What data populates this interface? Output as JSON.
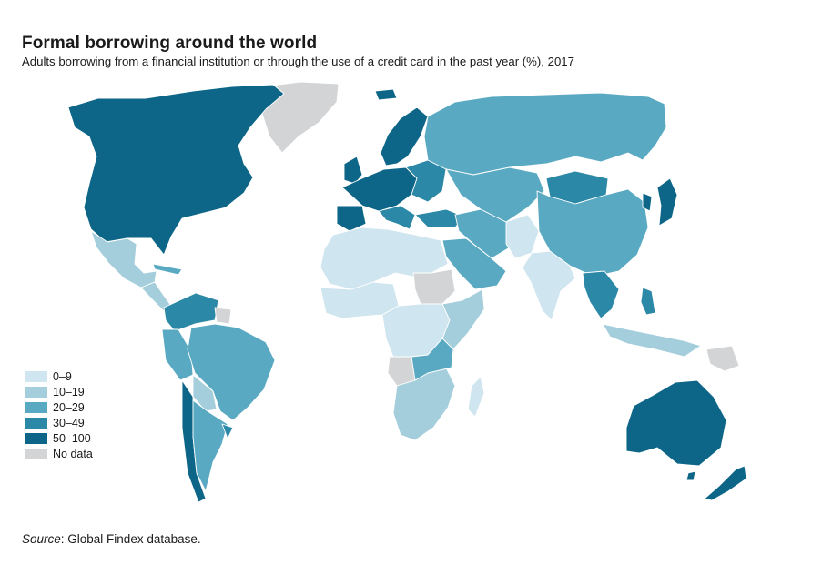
{
  "title": "Formal borrowing around the world",
  "subtitle": "Adults borrowing from a financial institution or through the use of a credit card in the past year (%), 2017",
  "legend": {
    "items": [
      {
        "label": "0–9",
        "color": "#cfe5ef"
      },
      {
        "label": "10–19",
        "color": "#a4cedc"
      },
      {
        "label": "20–29",
        "color": "#5aa9c2"
      },
      {
        "label": "30–49",
        "color": "#2b88a6"
      },
      {
        "label": "50–100",
        "color": "#0d6687"
      },
      {
        "label": "No data",
        "color": "#d3d4d5"
      }
    ]
  },
  "source": {
    "label": "Source",
    "text": ": Global Findex database."
  }
}
